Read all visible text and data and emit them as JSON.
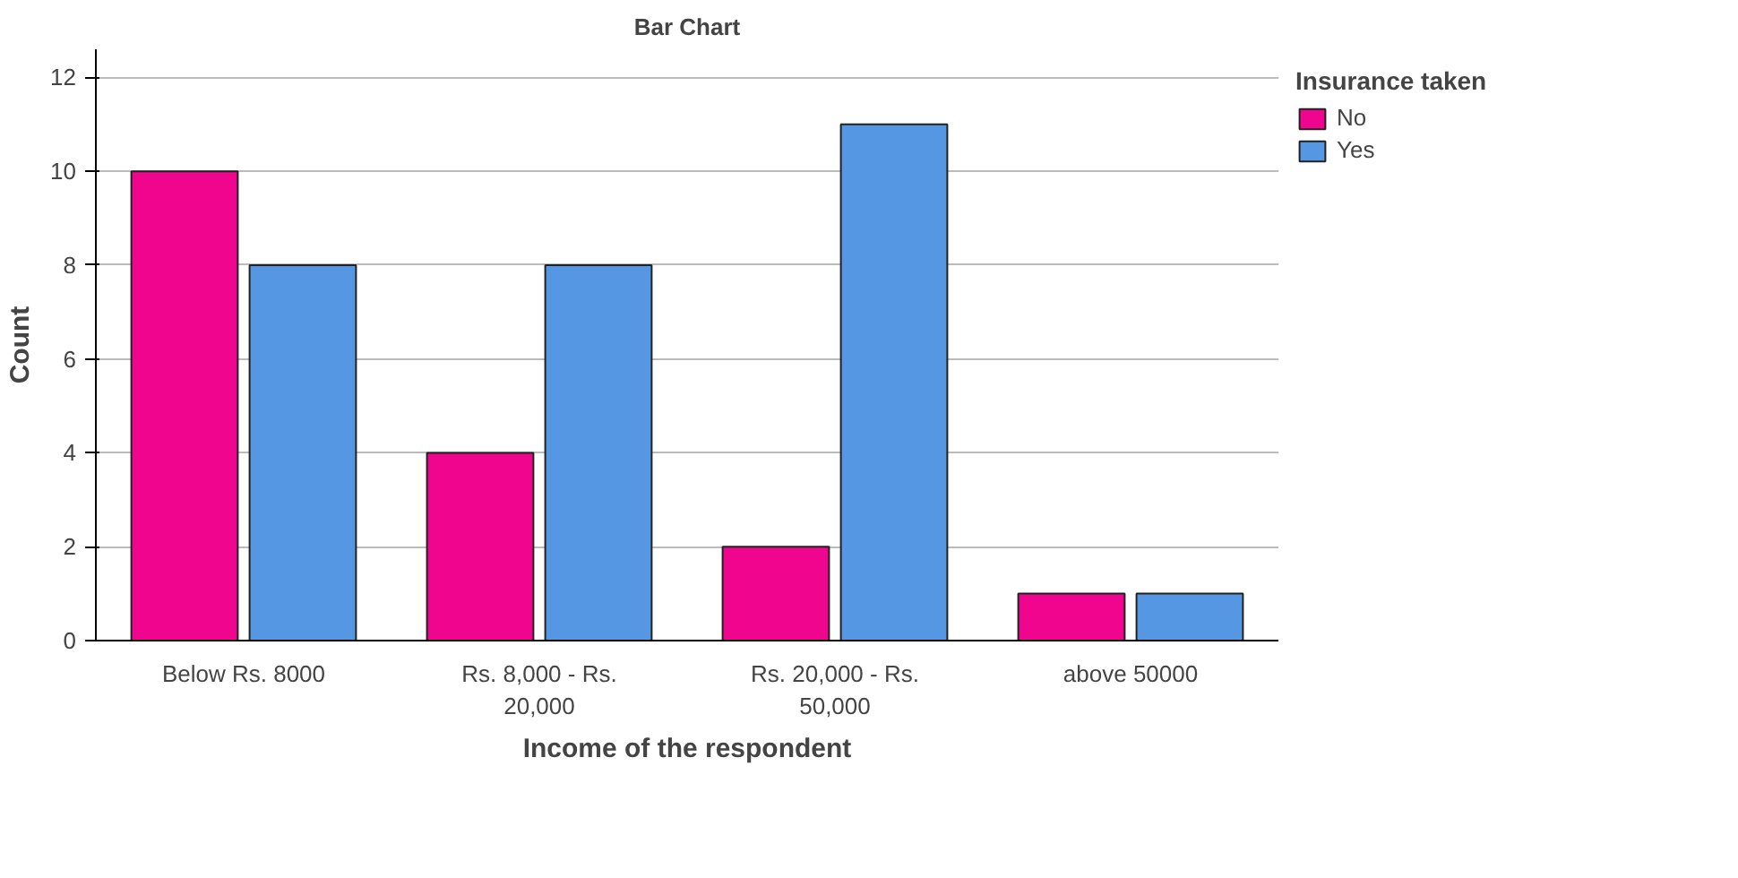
{
  "chart_data": {
    "type": "bar",
    "title": "Bar Chart",
    "xlabel": "Income of the respondent",
    "ylabel": "Count",
    "legend_title": "Insurance taken",
    "categories": [
      "Below Rs. 8000",
      "Rs. 8,000 - Rs. 20,000",
      "Rs. 20,000 - Rs. 50,000",
      "above 50000"
    ],
    "series": [
      {
        "name": "No",
        "color": "#f0058f",
        "values": [
          10,
          4,
          2,
          1
        ]
      },
      {
        "name": "Yes",
        "color": "#5597e3",
        "values": [
          8,
          8,
          11,
          1
        ]
      }
    ],
    "ylim": [
      0,
      12.6
    ],
    "yticks": [
      0,
      2,
      4,
      6,
      8,
      10,
      12
    ],
    "grid": "y",
    "legend": "top right"
  }
}
